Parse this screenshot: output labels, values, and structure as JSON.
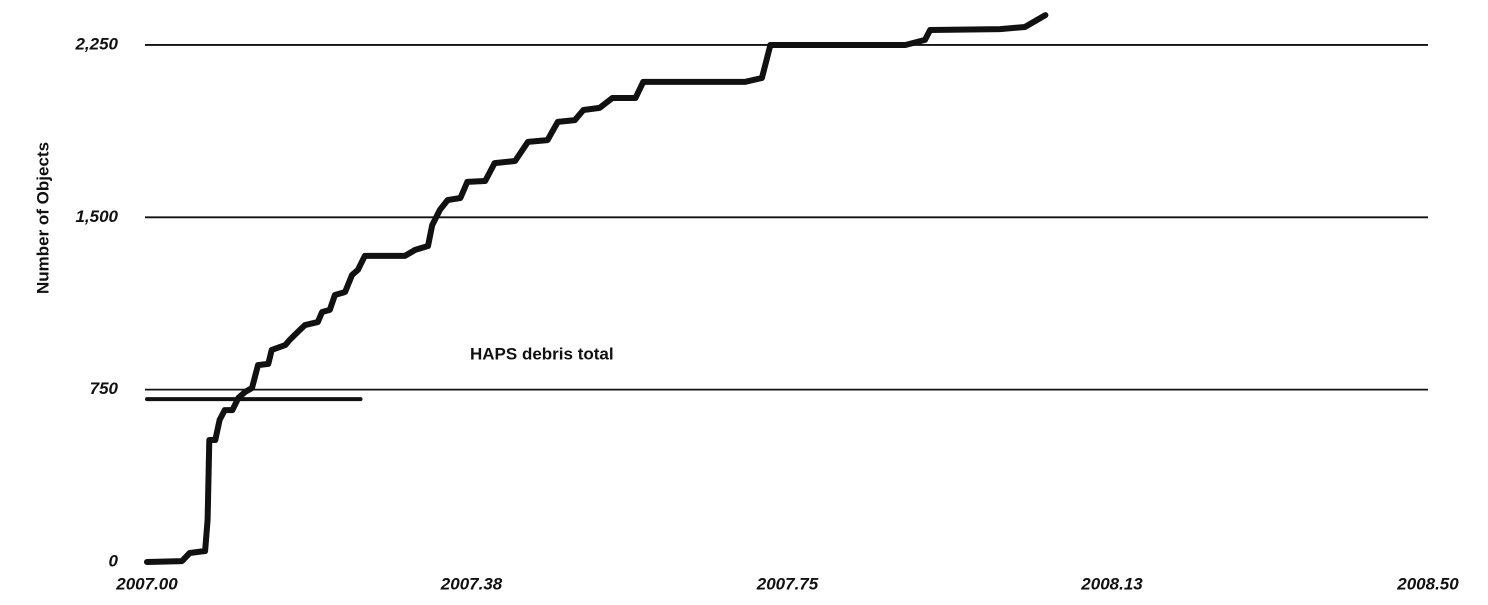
{
  "chart_data": {
    "type": "line",
    "y_label": "Number of Objects",
    "xlim": [
      2007.0,
      2008.5
    ],
    "ylim": [
      0,
      2400
    ],
    "xticks": [
      {
        "value": 2007.0,
        "label": "2007.00"
      },
      2007.38,
      2007.75,
      2008.13,
      {
        "value": 2008.5,
        "label": "2008.50"
      }
    ],
    "yticks": [
      0,
      {
        "value": 750,
        "label": "750"
      },
      {
        "value": 1500,
        "label": "1,500"
      },
      {
        "value": 2250,
        "label": "2,250"
      }
    ],
    "grid": true,
    "series": [
      {
        "color": "#111111",
        "x": [
          2007.0,
          2007.041,
          2007.05,
          2007.068,
          2007.071,
          2007.073,
          2007.08,
          2007.085,
          2007.091,
          2007.1,
          2007.107,
          2007.115,
          2007.123,
          2007.13,
          2007.142,
          2007.146,
          2007.162,
          2007.167,
          2007.179,
          2007.185,
          2007.2,
          2007.205,
          2007.214,
          2007.22,
          2007.232,
          2007.24,
          2007.247,
          2007.255,
          2007.302,
          2007.314,
          2007.329,
          2007.334,
          2007.343,
          2007.352,
          2007.367,
          2007.375,
          2007.396,
          2007.407,
          2007.431,
          2007.446,
          2007.469,
          2007.481,
          2007.501,
          2007.511,
          2007.53,
          2007.545,
          2007.572,
          2007.581,
          2007.7,
          2007.72,
          2007.73,
          2007.888,
          2007.911,
          2007.917,
          2007.999,
          2008.028,
          2008.052
        ],
        "values": [
          0,
          4,
          39,
          48,
          183,
          531,
          531,
          618,
          661,
          661,
          714,
          740,
          757,
          857,
          862,
          923,
          944,
          966,
          1010,
          1031,
          1044,
          1088,
          1097,
          1162,
          1175,
          1249,
          1271,
          1332,
          1332,
          1358,
          1375,
          1466,
          1532,
          1575,
          1584,
          1654,
          1658,
          1736,
          1745,
          1828,
          1836,
          1915,
          1923,
          1967,
          1976,
          2019,
          2019,
          2089,
          2089,
          2106,
          2250,
          2250,
          2272,
          2315,
          2319,
          2328,
          2380
        ]
      }
    ],
    "reference": {
      "label": "HAPS debris total",
      "value": 709,
      "x": [
        2007.0,
        2007.25
      ]
    }
  }
}
